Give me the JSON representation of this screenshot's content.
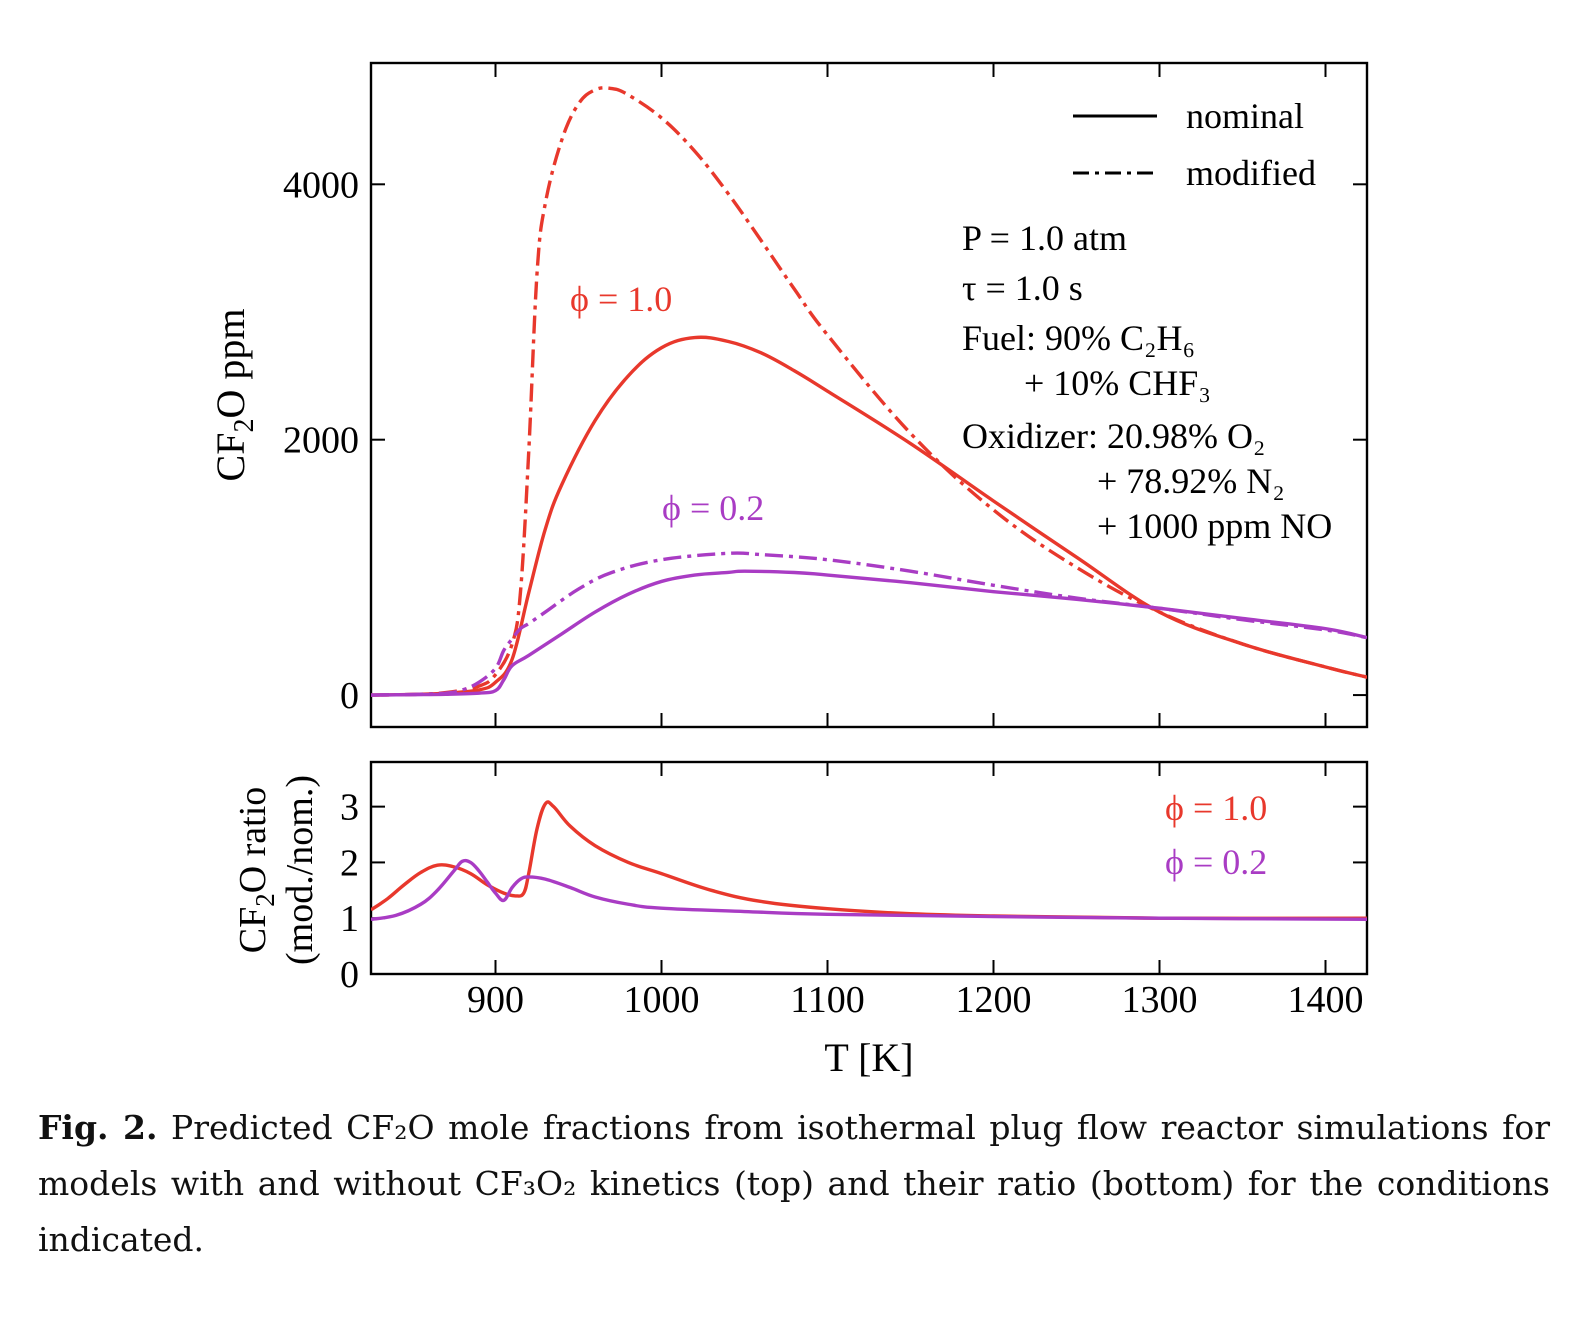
{
  "chart_data": [
    {
      "type": "line",
      "panel": "top",
      "ylabel": "CF2O ppm",
      "ylabel_parts": [
        "CF",
        "2",
        "O ppm"
      ],
      "xlim": [
        825,
        1425
      ],
      "ylim": [
        -250,
        4950
      ],
      "yticks": [
        0,
        2000,
        4000
      ],
      "xticks": [
        900,
        1000,
        1100,
        1200,
        1300,
        1400
      ],
      "legend": {
        "placement": "top-right",
        "entries": [
          {
            "label": "nominal",
            "style": "solid"
          },
          {
            "label": "modified",
            "style": "dash-dot"
          }
        ]
      },
      "conditions": [
        {
          "text": "P = 1.0 atm"
        },
        {
          "text": "τ = 1.0 s"
        },
        {
          "text": "Fuel: 90% C₂H₆"
        },
        {
          "text": "+ 10% CHF₃"
        },
        {
          "text": "Oxidizer: 20.98% O₂"
        },
        {
          "text": "+ 78.92% N₂"
        },
        {
          "text": "+ 1000 ppm NO"
        }
      ],
      "annotations": [
        {
          "text": "ϕ = 1.0",
          "color": "#e8382c"
        },
        {
          "text": "ϕ = 0.2",
          "color": "#a93cc4"
        }
      ],
      "series": [
        {
          "phi": "1.0",
          "model": "nominal",
          "style": "solid",
          "color": "#e8382c",
          "x": [
            825,
            850,
            870,
            890,
            900,
            910,
            920,
            930,
            940,
            960,
            980,
            1000,
            1020,
            1040,
            1060,
            1080,
            1100,
            1150,
            1200,
            1250,
            1300,
            1350,
            1400,
            1425
          ],
          "y": [
            0,
            5,
            15,
            40,
            100,
            280,
            800,
            1300,
            1650,
            2150,
            2500,
            2720,
            2800,
            2770,
            2680,
            2540,
            2380,
            1970,
            1520,
            1080,
            650,
            400,
            220,
            140
          ]
        },
        {
          "phi": "1.0",
          "model": "modified",
          "style": "dash-dot",
          "color": "#e8382c",
          "x": [
            825,
            850,
            870,
            890,
            900,
            910,
            915,
            920,
            925,
            930,
            940,
            950,
            960,
            970,
            980,
            1000,
            1020,
            1040,
            1060,
            1080,
            1100,
            1150,
            1200,
            1250,
            1300,
            1350,
            1400,
            1425
          ],
          "y": [
            0,
            5,
            20,
            70,
            160,
            400,
            800,
            1900,
            3300,
            3850,
            4350,
            4630,
            4740,
            4750,
            4700,
            4520,
            4260,
            3930,
            3560,
            3180,
            2820,
            2050,
            1450,
            1000,
            650,
            400,
            220,
            140
          ]
        },
        {
          "phi": "0.2",
          "model": "nominal",
          "style": "solid",
          "color": "#a93cc4",
          "x": [
            825,
            850,
            870,
            890,
            900,
            905,
            910,
            920,
            940,
            960,
            980,
            1000,
            1020,
            1040,
            1050,
            1080,
            1100,
            1150,
            1200,
            1250,
            1300,
            1350,
            1400,
            1425
          ],
          "y": [
            0,
            3,
            6,
            15,
            35,
            120,
            230,
            310,
            480,
            650,
            790,
            890,
            940,
            960,
            970,
            960,
            940,
            880,
            810,
            750,
            680,
            600,
            520,
            450
          ]
        },
        {
          "phi": "0.2",
          "model": "modified",
          "style": "dash-dot",
          "color": "#a93cc4",
          "x": [
            825,
            850,
            870,
            880,
            890,
            900,
            905,
            910,
            915,
            920,
            930,
            950,
            970,
            1000,
            1040,
            1060,
            1100,
            1150,
            1200,
            1250,
            1300,
            1350,
            1400,
            1425
          ],
          "y": [
            0,
            5,
            15,
            40,
            100,
            210,
            350,
            440,
            520,
            560,
            650,
            830,
            960,
            1060,
            1110,
            1100,
            1060,
            970,
            860,
            760,
            680,
            590,
            510,
            450
          ]
        }
      ]
    },
    {
      "type": "line",
      "panel": "bottom",
      "ylabel": "CF2O ratio (mod./nom.)",
      "ylabel_parts": [
        "CF",
        "2",
        "O ratio"
      ],
      "ylabel_line2": "(mod./nom.)",
      "xlabel": "T [K]",
      "xlim": [
        825,
        1425
      ],
      "ylim": [
        0,
        3.8
      ],
      "yticks": [
        0,
        1,
        2,
        3
      ],
      "xticks": [
        900,
        1000,
        1100,
        1200,
        1300,
        1400
      ],
      "annotations": [
        {
          "text": "ϕ = 1.0",
          "color": "#e8382c"
        },
        {
          "text": "ϕ = 0.2",
          "color": "#a93cc4"
        }
      ],
      "series": [
        {
          "phi": "1.0",
          "color": "#e8382c",
          "x": [
            825,
            835,
            845,
            855,
            865,
            875,
            885,
            895,
            905,
            912,
            917,
            920,
            925,
            930,
            935,
            945,
            960,
            980,
            1000,
            1030,
            1060,
            1100,
            1150,
            1200,
            1300,
            1425
          ],
          "y": [
            1.15,
            1.35,
            1.6,
            1.82,
            1.95,
            1.92,
            1.8,
            1.6,
            1.45,
            1.4,
            1.45,
            1.8,
            2.6,
            3.05,
            3.0,
            2.65,
            2.3,
            2.0,
            1.8,
            1.5,
            1.3,
            1.17,
            1.08,
            1.04,
            1.0,
            1.0
          ]
        },
        {
          "phi": "0.2",
          "color": "#a93cc4",
          "x": [
            825,
            840,
            855,
            865,
            875,
            880,
            885,
            890,
            895,
            900,
            905,
            910,
            915,
            920,
            930,
            945,
            960,
            980,
            1000,
            1050,
            1100,
            1200,
            1300,
            1425
          ],
          "y": [
            0.98,
            1.05,
            1.25,
            1.5,
            1.85,
            2.02,
            2.0,
            1.85,
            1.65,
            1.45,
            1.32,
            1.55,
            1.7,
            1.74,
            1.7,
            1.55,
            1.38,
            1.25,
            1.18,
            1.12,
            1.07,
            1.03,
            1.0,
            0.98
          ]
        }
      ]
    }
  ],
  "caption": {
    "label": "Fig. 2.",
    "text": "Predicted CF₂O mole fractions from isothermal plug flow reactor simulations for models with and without CF₃O₂ kinetics (top) and their ratio (bottom) for the conditions indicated."
  }
}
